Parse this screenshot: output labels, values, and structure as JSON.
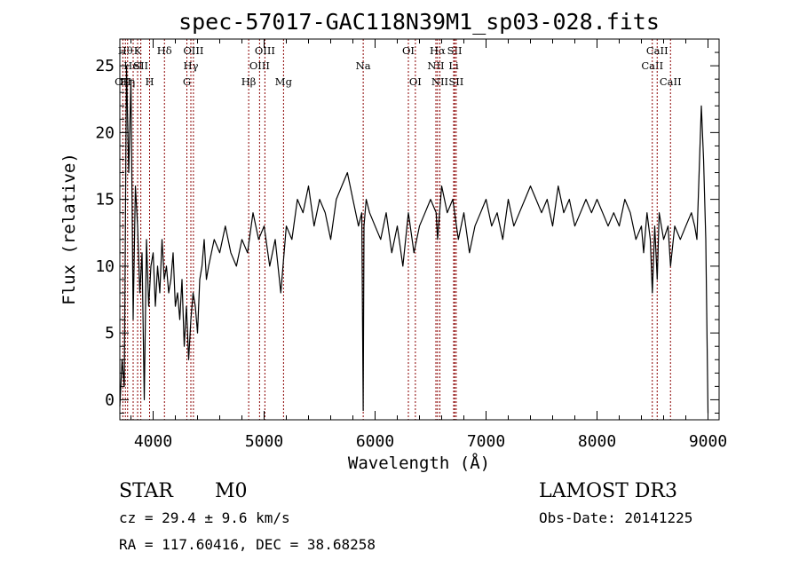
{
  "chart_data": {
    "type": "line",
    "title": "spec-57017-GAC118N39M1_sp03-028.fits",
    "xlabel": "Wavelength (Å)",
    "ylabel": "Flux (relative)",
    "xlim": [
      3700,
      9100
    ],
    "ylim": [
      -1.5,
      27
    ],
    "xticks": [
      4000,
      5000,
      6000,
      7000,
      8000,
      9000
    ],
    "yticks": [
      0,
      5,
      10,
      15,
      20,
      25
    ],
    "grid": false,
    "line_color": "#000000",
    "marker_color": "#8b0000",
    "series": [
      {
        "x": [
          3700,
          3720,
          3740,
          3760,
          3780,
          3800,
          3820,
          3840,
          3860,
          3880,
          3900,
          3920,
          3940,
          3960,
          3980,
          4000,
          4020,
          4040,
          4060,
          4080,
          4100,
          4120,
          4140,
          4160,
          4180,
          4200,
          4220,
          4240,
          4260,
          4280,
          4300,
          4320,
          4340,
          4360,
          4380,
          4400,
          4420,
          4440,
          4460,
          4480,
          4500,
          4550,
          4600,
          4650,
          4700,
          4750,
          4800,
          4850,
          4900,
          4950,
          5000,
          5050,
          5100,
          5150,
          5200,
          5250,
          5300,
          5350,
          5400,
          5450,
          5500,
          5550,
          5600,
          5650,
          5700,
          5750,
          5800,
          5850,
          5880,
          5893,
          5900,
          5920,
          5950,
          6000,
          6050,
          6100,
          6150,
          6200,
          6250,
          6300,
          6350,
          6400,
          6450,
          6500,
          6550,
          6563,
          6600,
          6650,
          6700,
          6750,
          6800,
          6850,
          6900,
          6950,
          7000,
          7050,
          7100,
          7150,
          7200,
          7250,
          7300,
          7350,
          7400,
          7450,
          7500,
          7550,
          7600,
          7650,
          7700,
          7750,
          7800,
          7850,
          7900,
          7950,
          8000,
          8050,
          8100,
          8150,
          8200,
          8250,
          8300,
          8350,
          8400,
          8420,
          8450,
          8480,
          8498,
          8520,
          8542,
          8560,
          8600,
          8640,
          8662,
          8700,
          8750,
          8800,
          8850,
          8880,
          8900,
          8920,
          8940,
          8960,
          8980,
          9000
        ],
        "y": [
          -0.5,
          3,
          1,
          25,
          17,
          24,
          6,
          16,
          13,
          8,
          11,
          0,
          12,
          7,
          10,
          11,
          7,
          10,
          8,
          12,
          9,
          10,
          8,
          9,
          11,
          7,
          8,
          6,
          9,
          4,
          7,
          3,
          6,
          8,
          7,
          5,
          9,
          10,
          12,
          9,
          10,
          12,
          11,
          13,
          11,
          10,
          12,
          11,
          14,
          12,
          13,
          10,
          12,
          8,
          13,
          12,
          15,
          14,
          16,
          13,
          15,
          14,
          12,
          15,
          16,
          17,
          15,
          13,
          14,
          -0.8,
          13,
          15,
          14,
          13,
          12,
          14,
          11,
          13,
          10,
          14,
          11,
          13,
          14,
          15,
          14,
          12,
          16,
          14,
          15,
          12,
          14,
          11,
          13,
          14,
          15,
          13,
          14,
          12,
          15,
          13,
          14,
          15,
          16,
          15,
          14,
          15,
          13,
          16,
          14,
          15,
          13,
          14,
          15,
          14,
          15,
          14,
          13,
          14,
          13,
          15,
          14,
          12,
          13,
          11,
          14,
          12,
          8,
          13,
          9,
          14,
          12,
          13,
          10,
          13,
          12,
          13,
          14,
          13,
          12,
          17,
          22,
          18,
          12,
          -1
        ]
      }
    ],
    "line_markers": [
      {
        "x": 3750,
        "label": "Hθ",
        "row": 0
      },
      {
        "x": 3727,
        "label": "OII",
        "row": 2
      },
      {
        "x": 3770,
        "label": "Hη",
        "row": 2
      },
      {
        "x": 3820,
        "label": "HeI",
        "row": 1
      },
      {
        "x": 3860,
        "label": "K",
        "row": 0
      },
      {
        "x": 3889,
        "label": "SII",
        "row": 1
      },
      {
        "x": 3968,
        "label": "H",
        "row": 2
      },
      {
        "x": 4102,
        "label": "Hδ",
        "row": 0
      },
      {
        "x": 4304,
        "label": "G",
        "row": 2
      },
      {
        "x": 4340,
        "label": "Hγ",
        "row": 1
      },
      {
        "x": 4363,
        "label": "OIII",
        "row": 0
      },
      {
        "x": 4861,
        "label": "Hβ",
        "row": 2
      },
      {
        "x": 4959,
        "label": "OIII",
        "row": 1
      },
      {
        "x": 5007,
        "label": "OIII",
        "row": 0
      },
      {
        "x": 5175,
        "label": "Mg",
        "row": 2
      },
      {
        "x": 5893,
        "label": "Na",
        "row": 1
      },
      {
        "x": 6300,
        "label": "OI",
        "row": 0
      },
      {
        "x": 6363,
        "label": "OI",
        "row": 2
      },
      {
        "x": 6548,
        "label": "NII",
        "row": 1
      },
      {
        "x": 6563,
        "label": "Hα",
        "row": 0
      },
      {
        "x": 6584,
        "label": "NII",
        "row": 2
      },
      {
        "x": 6708,
        "label": "Li",
        "row": 1
      },
      {
        "x": 6717,
        "label": "SII",
        "row": 0
      },
      {
        "x": 6731,
        "label": "SII",
        "row": 2
      },
      {
        "x": 8498,
        "label": "CaII",
        "row": 1
      },
      {
        "x": 8542,
        "label": "CaII",
        "row": 0
      },
      {
        "x": 8662,
        "label": "CaII",
        "row": 2
      }
    ]
  },
  "info": {
    "object_type": "STAR",
    "subclass": "M0",
    "survey": "LAMOST DR3",
    "redshift_text": "cz = 29.4 ± 9.6 km/s",
    "obs_date_text": "Obs-Date: 20141225",
    "coords_text": "RA = 117.60416, DEC =  38.68258"
  }
}
